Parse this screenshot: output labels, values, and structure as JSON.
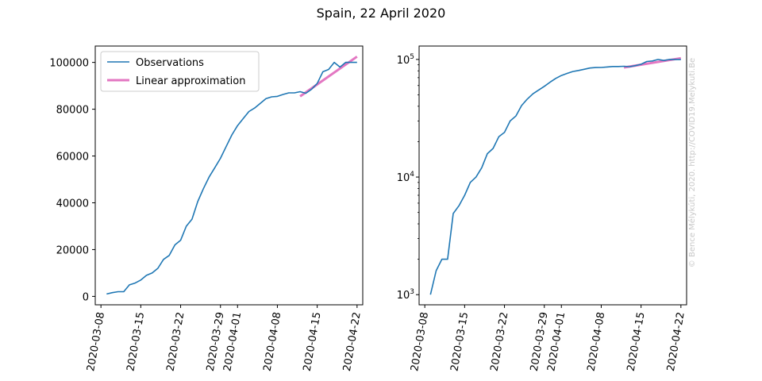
{
  "title": "Spain, 22 April 2020",
  "watermark": "© Bence Mélykúti, 2020. http://COVID19.Melykuti.Be",
  "colors": {
    "observations": "#1f77b4",
    "linear": "#e377c2",
    "watermark": "#c8c8c8"
  },
  "chart_data": [
    {
      "type": "line",
      "yscale": "linear",
      "grid": false,
      "legend_position": "top-left",
      "x": [
        "2020-03-09",
        "2020-03-10",
        "2020-03-11",
        "2020-03-12",
        "2020-03-13",
        "2020-03-14",
        "2020-03-15",
        "2020-03-16",
        "2020-03-17",
        "2020-03-18",
        "2020-03-19",
        "2020-03-20",
        "2020-03-21",
        "2020-03-22",
        "2020-03-23",
        "2020-03-24",
        "2020-03-25",
        "2020-03-26",
        "2020-03-27",
        "2020-03-28",
        "2020-03-29",
        "2020-03-30",
        "2020-03-31",
        "2020-04-01",
        "2020-04-02",
        "2020-04-03",
        "2020-04-04",
        "2020-04-05",
        "2020-04-06",
        "2020-04-07",
        "2020-04-08",
        "2020-04-09",
        "2020-04-10",
        "2020-04-11",
        "2020-04-12",
        "2020-04-13",
        "2020-04-14",
        "2020-04-15",
        "2020-04-16",
        "2020-04-17",
        "2020-04-18",
        "2020-04-19",
        "2020-04-20",
        "2020-04-21",
        "2020-04-22"
      ],
      "series": [
        {
          "name": "Observations",
          "values": [
            1000,
            1600,
            2000,
            2000,
            4900,
            5700,
            7000,
            9000,
            10000,
            12000,
            15800,
            17500,
            22000,
            24000,
            30000,
            33000,
            40500,
            46000,
            51000,
            55000,
            59000,
            64000,
            69000,
            73000,
            76000,
            79000,
            80500,
            82500,
            84500,
            85300,
            85500,
            86300,
            87000,
            87000,
            87500,
            86800,
            88500,
            91000,
            96000,
            97000,
            100000,
            98000,
            100000,
            100000,
            100000
          ]
        },
        {
          "name": "Linear approximation",
          "x": [
            "2020-04-12",
            "2020-04-22"
          ],
          "values": [
            85500,
            102500
          ]
        }
      ],
      "xticks": [
        "2020-03-08",
        "2020-03-15",
        "2020-03-22",
        "2020-03-29",
        "2020-04-01",
        "2020-04-08",
        "2020-04-15",
        "2020-04-22"
      ],
      "yticks": [
        "0",
        "20000",
        "40000",
        "60000",
        "80000",
        "100000"
      ],
      "ylim": [
        -3600,
        107000
      ],
      "xlim": [
        "2020-03-07",
        "2020-04-23"
      ]
    },
    {
      "type": "line",
      "yscale": "log",
      "grid": false,
      "x": [
        "2020-03-09",
        "2020-03-10",
        "2020-03-11",
        "2020-03-12",
        "2020-03-13",
        "2020-03-14",
        "2020-03-15",
        "2020-03-16",
        "2020-03-17",
        "2020-03-18",
        "2020-03-19",
        "2020-03-20",
        "2020-03-21",
        "2020-03-22",
        "2020-03-23",
        "2020-03-24",
        "2020-03-25",
        "2020-03-26",
        "2020-03-27",
        "2020-03-28",
        "2020-03-29",
        "2020-03-30",
        "2020-03-31",
        "2020-04-01",
        "2020-04-02",
        "2020-04-03",
        "2020-04-04",
        "2020-04-05",
        "2020-04-06",
        "2020-04-07",
        "2020-04-08",
        "2020-04-09",
        "2020-04-10",
        "2020-04-11",
        "2020-04-12",
        "2020-04-13",
        "2020-04-14",
        "2020-04-15",
        "2020-04-16",
        "2020-04-17",
        "2020-04-18",
        "2020-04-19",
        "2020-04-20",
        "2020-04-21",
        "2020-04-22"
      ],
      "series": [
        {
          "name": "Observations",
          "values": [
            1000,
            1600,
            2000,
            2000,
            4900,
            5700,
            7000,
            9000,
            10000,
            12000,
            15800,
            17500,
            22000,
            24000,
            30000,
            33000,
            40500,
            46000,
            51000,
            55000,
            59000,
            64000,
            69000,
            73000,
            76000,
            79000,
            80500,
            82500,
            84500,
            85300,
            85500,
            86300,
            87000,
            87000,
            87500,
            86800,
            88500,
            91000,
            96000,
            97000,
            100000,
            98000,
            100000,
            100000,
            100000
          ]
        },
        {
          "name": "Linear approximation",
          "x": [
            "2020-04-12",
            "2020-04-22"
          ],
          "values": [
            85500,
            102500
          ]
        }
      ],
      "xticks": [
        "2020-03-08",
        "2020-03-15",
        "2020-03-22",
        "2020-03-29",
        "2020-04-01",
        "2020-04-08",
        "2020-04-15",
        "2020-04-22"
      ],
      "yticks": [
        {
          "base": "10",
          "exp": "3",
          "value": 1000
        },
        {
          "base": "10",
          "exp": "4",
          "value": 10000
        },
        {
          "base": "10",
          "exp": "5",
          "value": 100000
        }
      ],
      "ylim": [
        820,
        130000
      ],
      "xlim": [
        "2020-03-07",
        "2020-04-23"
      ]
    }
  ]
}
